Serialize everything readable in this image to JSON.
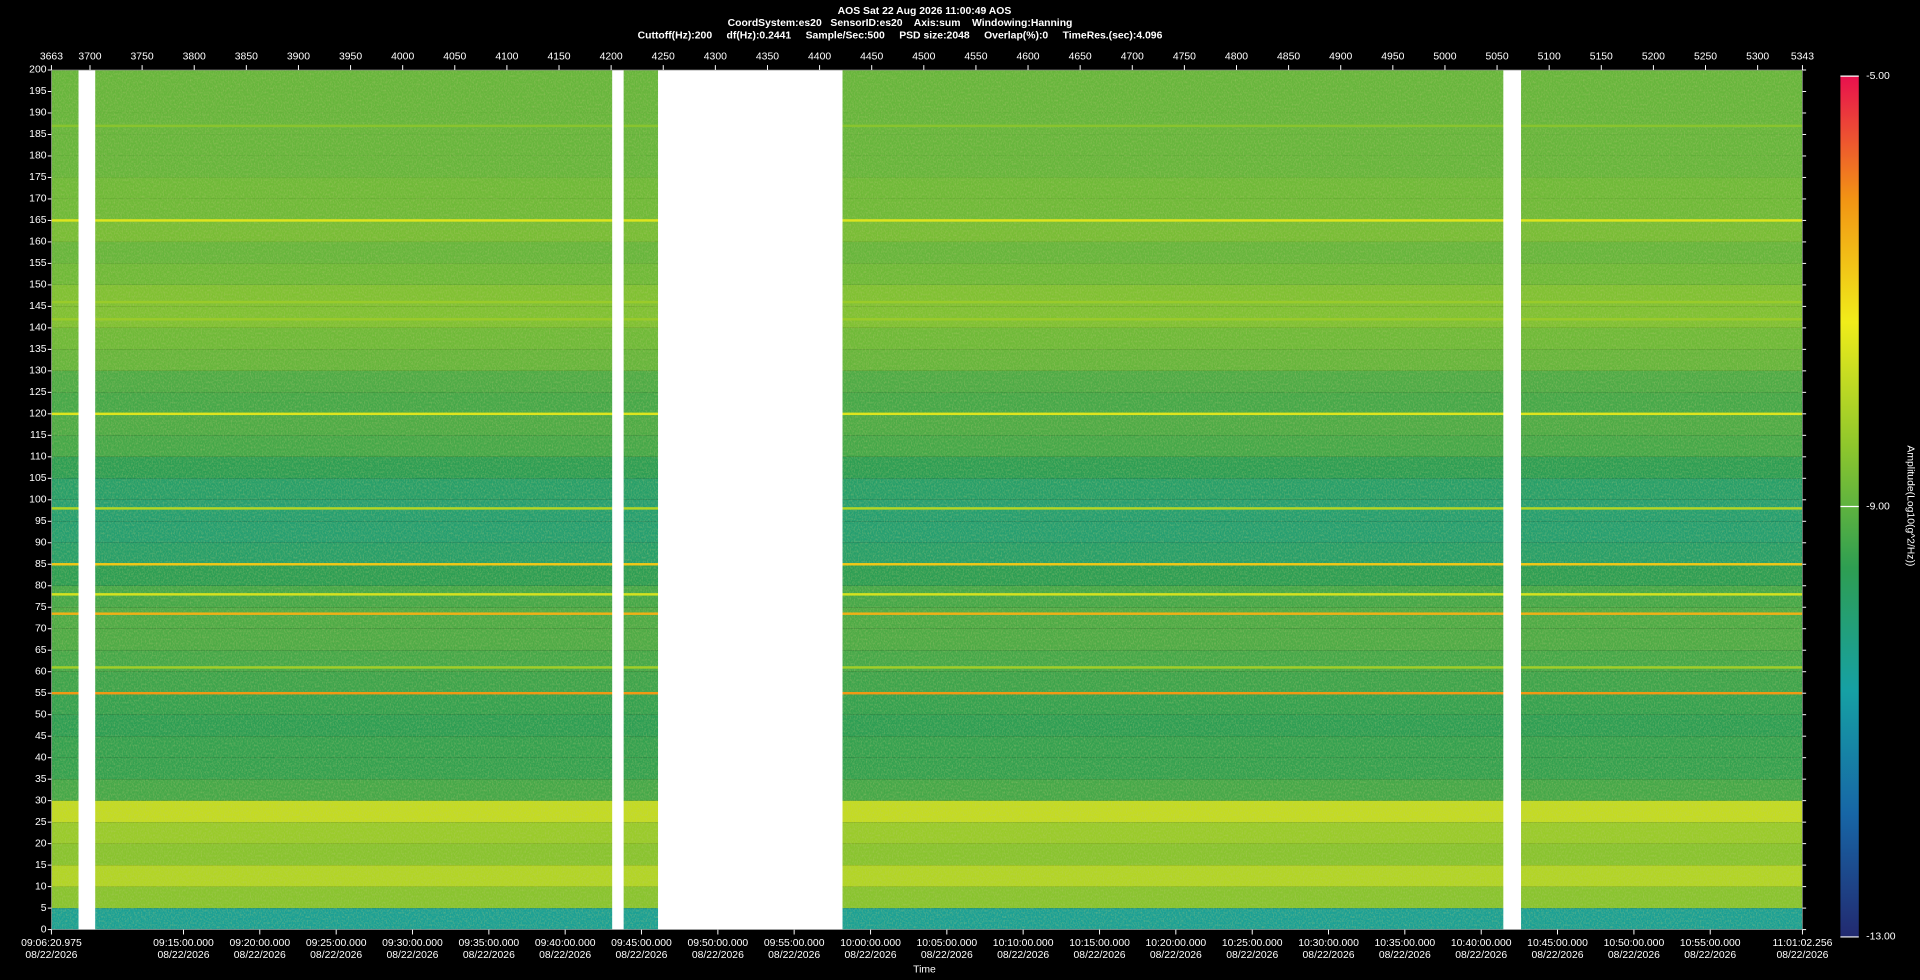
{
  "chart_data": {
    "type": "spectrogram",
    "title": "AOS  Sat 22 Aug 2026 11:00:49  AOS",
    "subtitle": "CoordSystem:es20   SensorID:es20    Axis:sum    Windowing:Hanning",
    "settings_text": "Cuttoff(Hz):200     df(Hz):0.2441     Sample/Sec:500     PSD size:2048     Overlap(%):0     TimeRes.(sec):4.096",
    "xlabel": "Time",
    "date_label": "08/22/2026",
    "colorbar_label": "Amplitude(Log10(g^2/Hz))",
    "xlim": [
      3663,
      5343
    ],
    "xticks_top": [
      3663,
      3700,
      3750,
      3800,
      3850,
      3900,
      3950,
      4000,
      4050,
      4100,
      4150,
      4200,
      4250,
      4300,
      4350,
      4400,
      4450,
      4500,
      4550,
      4600,
      4650,
      4700,
      4750,
      4800,
      4850,
      4900,
      4950,
      5000,
      5050,
      5100,
      5150,
      5200,
      5250,
      5300,
      5343
    ],
    "xticks": [
      {
        "value": 3663,
        "label": "09:06:20.975"
      },
      {
        "value": 3789.7,
        "label": "09:15:00.000"
      },
      {
        "value": 3862.9,
        "label": "09:20:00.000"
      },
      {
        "value": 3936.2,
        "label": "09:25:00.000"
      },
      {
        "value": 4009.4,
        "label": "09:30:00.000"
      },
      {
        "value": 4082.7,
        "label": "09:35:00.000"
      },
      {
        "value": 4155.9,
        "label": "09:40:00.000"
      },
      {
        "value": 4229.1,
        "label": "09:45:00.000"
      },
      {
        "value": 4302.4,
        "label": "09:50:00.000"
      },
      {
        "value": 4375.6,
        "label": "09:55:00.000"
      },
      {
        "value": 4448.9,
        "label": "10:00:00.000"
      },
      {
        "value": 4522.1,
        "label": "10:05:00.000"
      },
      {
        "value": 4595.3,
        "label": "10:10:00.000"
      },
      {
        "value": 4668.6,
        "label": "10:15:00.000"
      },
      {
        "value": 4741.8,
        "label": "10:20:00.000"
      },
      {
        "value": 4815.1,
        "label": "10:25:00.000"
      },
      {
        "value": 4888.3,
        "label": "10:30:00.000"
      },
      {
        "value": 4961.5,
        "label": "10:35:00.000"
      },
      {
        "value": 5034.8,
        "label": "10:40:00.000"
      },
      {
        "value": 5108.0,
        "label": "10:45:00.000"
      },
      {
        "value": 5181.3,
        "label": "10:50:00.000"
      },
      {
        "value": 5254.5,
        "label": "10:55:00.000"
      },
      {
        "value": 5343,
        "label": "11:01:02.256"
      }
    ],
    "ylim": [
      0,
      200
    ],
    "yticks": [
      0,
      5,
      10,
      15,
      20,
      25,
      30,
      35,
      40,
      45,
      50,
      55,
      60,
      65,
      70,
      75,
      80,
      85,
      90,
      95,
      100,
      105,
      110,
      115,
      120,
      125,
      130,
      135,
      140,
      145,
      150,
      155,
      160,
      165,
      170,
      175,
      180,
      185,
      190,
      195,
      200
    ],
    "band_amplitude": [
      -10.5,
      -8.5,
      -8.0,
      -8.5,
      -8.3,
      -7.8,
      -9.3,
      -9.5,
      -9.5,
      -9.6,
      -9.5,
      -9.4,
      -9.3,
      -9.2,
      -9.2,
      -9.3,
      -9.6,
      -9.9,
      -10.0,
      -10.0,
      -9.9,
      -9.6,
      -9.3,
      -9.2,
      -9.3,
      -9.2,
      -8.9,
      -8.8,
      -8.6,
      -8.6,
      -8.8,
      -8.9,
      -8.7,
      -8.8,
      -8.8,
      -8.9,
      -8.9,
      -8.9,
      -8.9,
      -8.9
    ],
    "lines": [
      {
        "frequency": 187,
        "amplitude": -8.5
      },
      {
        "frequency": 165,
        "amplitude": -7.5
      },
      {
        "frequency": 146,
        "amplitude": -8.3
      },
      {
        "frequency": 142,
        "amplitude": -8.3
      },
      {
        "frequency": 120,
        "amplitude": -7.5
      },
      {
        "frequency": 98,
        "amplitude": -8.0
      },
      {
        "frequency": 85,
        "amplitude": -6.8
      },
      {
        "frequency": 78,
        "amplitude": -7.6
      },
      {
        "frequency": 73.5,
        "amplitude": -6.5
      },
      {
        "frequency": 61,
        "amplitude": -8.2
      },
      {
        "frequency": 55,
        "amplitude": -6.2
      }
    ],
    "gaps": [
      [
        3689,
        3705
      ],
      [
        4201,
        4212
      ],
      [
        4245,
        4422
      ],
      [
        5056,
        5073
      ]
    ],
    "colorbar_lim": [
      -13,
      -5
    ],
    "colorbar_ticks": [
      {
        "value": -5,
        "label": "-5.00"
      },
      {
        "value": -9,
        "label": "-9.00"
      },
      {
        "value": -13,
        "label": "-13.00"
      }
    ],
    "colorscale": [
      "#222a70",
      "#1766a6",
      "#16a0a4",
      "#2e9e52",
      "#8fc72c",
      "#f0ec1a",
      "#f29414",
      "#e8104e"
    ]
  }
}
